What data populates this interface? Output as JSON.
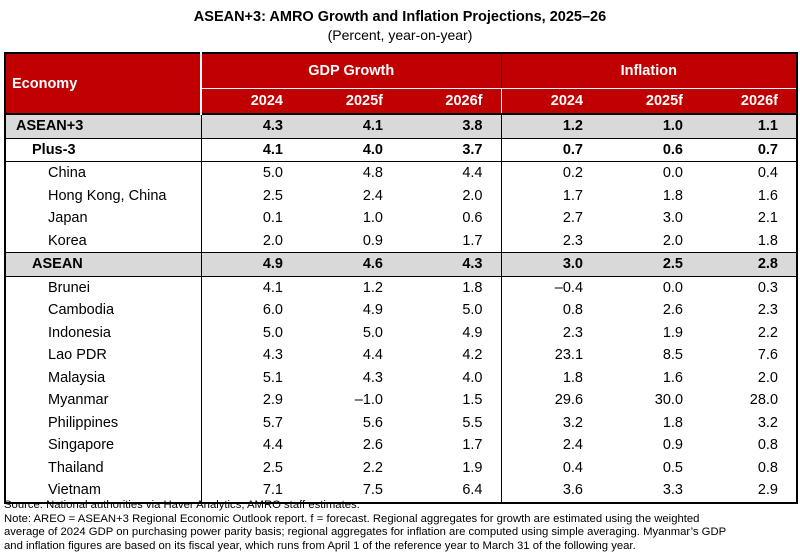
{
  "header": {
    "title": "ASEAN+3: AMRO Growth and Inflation Projections, 2025–26",
    "subtitle": "(Percent, year-on-year)"
  },
  "table": {
    "economy_header": "Economy",
    "groups": [
      "GDP Growth",
      "Inflation"
    ],
    "years": [
      "2024",
      "2025f",
      "2026f",
      "2024",
      "2025f",
      "2026f"
    ],
    "rows": [
      [
        "ASEAN+3",
        "4.3",
        "4.1",
        "3.8",
        "1.2",
        "1.0",
        "1.1"
      ],
      [
        "Plus-3",
        "4.1",
        "4.0",
        "3.7",
        "0.7",
        "0.6",
        "0.7"
      ],
      [
        "China",
        "5.0",
        "4.8",
        "4.4",
        "0.2",
        "0.0",
        "0.4"
      ],
      [
        "Hong Kong, China",
        "2.5",
        "2.4",
        "2.0",
        "1.7",
        "1.8",
        "1.6"
      ],
      [
        "Japan",
        "0.1",
        "1.0",
        "0.6",
        "2.7",
        "3.0",
        "2.1"
      ],
      [
        "Korea",
        "2.0",
        "0.9",
        "1.7",
        "2.3",
        "2.0",
        "1.8"
      ],
      [
        "ASEAN",
        "4.9",
        "4.6",
        "4.3",
        "3.0",
        "2.5",
        "2.8"
      ],
      [
        "Brunei",
        "4.1",
        "1.2",
        "1.8",
        "–0.4",
        "0.0",
        "0.3"
      ],
      [
        "Cambodia",
        "6.0",
        "4.9",
        "5.0",
        "0.8",
        "2.6",
        "2.3"
      ],
      [
        "Indonesia",
        "5.0",
        "5.0",
        "4.9",
        "2.3",
        "1.9",
        "2.2"
      ],
      [
        "Lao PDR",
        "4.3",
        "4.4",
        "4.2",
        "23.1",
        "8.5",
        "7.6"
      ],
      [
        "Malaysia",
        "5.1",
        "4.3",
        "4.0",
        "1.8",
        "1.6",
        "2.0"
      ],
      [
        "Myanmar",
        "2.9",
        "–1.0",
        "1.5",
        "29.6",
        "30.0",
        "28.0"
      ],
      [
        "Philippines",
        "5.7",
        "5.6",
        "5.5",
        "3.2",
        "1.8",
        "3.2"
      ],
      [
        "Singapore",
        "4.4",
        "2.6",
        "1.7",
        "2.4",
        "0.9",
        "0.8"
      ],
      [
        "Thailand",
        "2.5",
        "2.2",
        "1.9",
        "0.4",
        "0.5",
        "0.8"
      ],
      [
        "Vietnam",
        "7.1",
        "7.5",
        "6.4",
        "3.6",
        "3.3",
        "2.9"
      ]
    ]
  },
  "notes": [
    "Source: National authorities via Haver Analytics; AMRO staff estimates.",
    "Note: AREO = ASEAN+3 Regional Economic Outlook report. f = forecast. Regional aggregates for growth are estimated using the weighted",
    "average of 2024 GDP on purchasing power parity basis; regional aggregates for inflation are computed using simple averaging. Myanmar’s GDP",
    "and inflation figures are based on its fiscal year, which runs from April 1 of the reference year to March 31 of the following year."
  ]
}
